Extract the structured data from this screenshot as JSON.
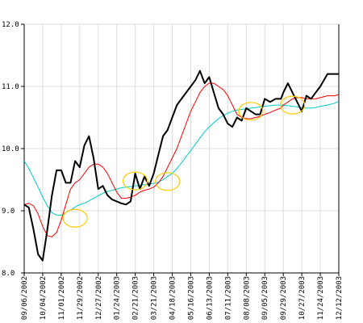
{
  "chart_data": {
    "type": "line",
    "title": "",
    "xlabel": "",
    "ylabel": "",
    "ylim": [
      8.0,
      12.0
    ],
    "yticks": [
      8.0,
      9.0,
      10.0,
      11.0,
      12.0
    ],
    "ytick_labels": [
      "8.0",
      "9.0",
      "10.0",
      "11.0",
      "12.0"
    ],
    "xticks": [
      "09/06/2002",
      "10/04/2002",
      "11/01/2002",
      "11/29/2002",
      "12/27/2002",
      "01/24/2003",
      "02/21/2003",
      "03/21/2003",
      "04/18/2003",
      "05/16/2003",
      "06/13/2003",
      "07/11/2003",
      "08/08/2003",
      "09/05/2003",
      "09/29/2003",
      "10/27/2003",
      "11/24/2003",
      "12/12/2003"
    ],
    "grid": true,
    "legend": "none",
    "colors": {
      "price": "#000000",
      "short_ma": "#ff0000",
      "long_ma": "#00cccc",
      "crossover_marker": "#ffcc00",
      "grid": "#dddddd",
      "axis": "#000000"
    },
    "series": [
      {
        "key": "price",
        "x": [
          "09/06/2002",
          "09/13/2002",
          "09/20/2002",
          "09/27/2002",
          "10/04/2002",
          "10/11/2002",
          "10/18/2002",
          "10/25/2002",
          "11/01/2002",
          "11/08/2002",
          "11/15/2002",
          "11/22/2002",
          "11/29/2002",
          "12/06/2002",
          "12/13/2002",
          "12/20/2002",
          "12/27/2002",
          "01/03/2003",
          "01/10/2003",
          "01/17/2003",
          "01/24/2003",
          "01/31/2003",
          "02/07/2003",
          "02/14/2003",
          "02/21/2003",
          "02/28/2003",
          "03/07/2003",
          "03/14/2003",
          "03/21/2003",
          "03/28/2003",
          "04/04/2003",
          "04/11/2003",
          "04/18/2003",
          "04/25/2003",
          "05/02/2003",
          "05/09/2003",
          "05/16/2003",
          "05/23/2003",
          "05/30/2003",
          "06/06/2003",
          "06/13/2003",
          "06/20/2003",
          "06/27/2003",
          "07/04/2003",
          "07/11/2003",
          "07/18/2003",
          "07/25/2003",
          "08/01/2003",
          "08/08/2003",
          "08/15/2003",
          "08/22/2003",
          "08/29/2003",
          "09/05/2003",
          "09/12/2003",
          "09/19/2003",
          "09/26/2003",
          "09/29/2003",
          "10/06/2003",
          "10/13/2003",
          "10/20/2003",
          "10/27/2003",
          "11/03/2003",
          "11/10/2003",
          "11/17/2003",
          "11/24/2003",
          "12/01/2003",
          "12/08/2003",
          "12/12/2003"
        ],
        "values": [
          9.1,
          9.05,
          8.7,
          8.3,
          8.2,
          8.7,
          9.25,
          9.65,
          9.65,
          9.45,
          9.45,
          9.8,
          9.7,
          10.05,
          10.2,
          9.85,
          9.35,
          9.4,
          9.25,
          9.18,
          9.15,
          9.12,
          9.1,
          9.15,
          9.6,
          9.35,
          9.55,
          9.4,
          9.6,
          9.9,
          10.2,
          10.3,
          10.5,
          10.7,
          10.8,
          10.9,
          11.0,
          11.1,
          11.25,
          11.05,
          11.15,
          10.9,
          10.65,
          10.55,
          10.4,
          10.35,
          10.5,
          10.45,
          10.65,
          10.6,
          10.55,
          10.55,
          10.8,
          10.75,
          10.8,
          10.8,
          10.9,
          11.05,
          10.9,
          10.75,
          10.6,
          10.85,
          10.8,
          10.9,
          11.0,
          11.2,
          11.2,
          11.2
        ]
      },
      {
        "key": "short_ma",
        "x": [
          "09/06/2002",
          "09/13/2002",
          "09/20/2002",
          "09/27/2002",
          "10/04/2002",
          "10/11/2002",
          "10/18/2002",
          "10/25/2002",
          "11/01/2002",
          "11/08/2002",
          "11/15/2002",
          "11/22/2002",
          "11/29/2002",
          "12/06/2002",
          "12/13/2002",
          "12/20/2002",
          "12/27/2002",
          "01/03/2003",
          "01/10/2003",
          "01/17/2003",
          "01/24/2003",
          "01/31/2003",
          "02/07/2003",
          "02/14/2003",
          "02/21/2003",
          "02/28/2003",
          "03/07/2003",
          "03/14/2003",
          "03/21/2003",
          "03/28/2003",
          "04/04/2003",
          "04/11/2003",
          "04/18/2003",
          "04/25/2003",
          "05/02/2003",
          "05/09/2003",
          "05/16/2003",
          "05/23/2003",
          "05/30/2003",
          "06/06/2003",
          "06/13/2003",
          "06/20/2003",
          "06/27/2003",
          "07/04/2003",
          "07/11/2003",
          "07/18/2003",
          "07/25/2003",
          "08/01/2003",
          "08/08/2003",
          "08/15/2003",
          "08/22/2003",
          "08/29/2003",
          "09/05/2003",
          "09/12/2003",
          "09/19/2003",
          "09/26/2003",
          "09/29/2003",
          "10/06/2003",
          "10/13/2003",
          "10/20/2003",
          "10/27/2003",
          "11/03/2003",
          "11/10/2003",
          "11/17/2003",
          "11/24/2003",
          "12/01/2003",
          "12/08/2003",
          "12/12/2003"
        ],
        "values": [
          9.1,
          9.12,
          9.08,
          8.95,
          8.75,
          8.6,
          8.58,
          8.65,
          8.85,
          9.1,
          9.35,
          9.45,
          9.5,
          9.6,
          9.7,
          9.75,
          9.75,
          9.7,
          9.6,
          9.45,
          9.3,
          9.2,
          9.2,
          9.22,
          9.25,
          9.3,
          9.33,
          9.35,
          9.38,
          9.45,
          9.55,
          9.7,
          9.85,
          10.0,
          10.2,
          10.4,
          10.6,
          10.75,
          10.9,
          11.0,
          11.05,
          11.05,
          11.0,
          10.95,
          10.85,
          10.7,
          10.55,
          10.5,
          10.48,
          10.48,
          10.5,
          10.52,
          10.55,
          10.58,
          10.62,
          10.65,
          10.7,
          10.75,
          10.8,
          10.82,
          10.82,
          10.8,
          10.8,
          10.8,
          10.82,
          10.85,
          10.85,
          10.87
        ]
      },
      {
        "key": "long_ma",
        "x": [
          "09/06/2002",
          "09/13/2002",
          "09/20/2002",
          "09/27/2002",
          "10/04/2002",
          "10/11/2002",
          "10/18/2002",
          "10/25/2002",
          "11/01/2002",
          "11/08/2002",
          "11/15/2002",
          "11/22/2002",
          "11/29/2002",
          "12/06/2002",
          "12/13/2002",
          "12/20/2002",
          "12/27/2002",
          "01/03/2003",
          "01/10/2003",
          "01/17/2003",
          "01/24/2003",
          "01/31/2003",
          "02/07/2003",
          "02/14/2003",
          "02/21/2003",
          "02/28/2003",
          "03/07/2003",
          "03/14/2003",
          "03/21/2003",
          "03/28/2003",
          "04/04/2003",
          "04/11/2003",
          "04/18/2003",
          "04/25/2003",
          "05/02/2003",
          "05/09/2003",
          "05/16/2003",
          "05/23/2003",
          "05/30/2003",
          "06/06/2003",
          "06/13/2003",
          "06/20/2003",
          "06/27/2003",
          "07/04/2003",
          "07/11/2003",
          "07/18/2003",
          "07/25/2003",
          "08/01/2003",
          "08/08/2003",
          "08/15/2003",
          "08/22/2003",
          "08/29/2003",
          "09/05/2003",
          "09/12/2003",
          "09/19/2003",
          "09/26/2003",
          "09/29/2003",
          "10/06/2003",
          "10/13/2003",
          "10/20/2003",
          "10/27/2003",
          "11/03/2003",
          "11/10/2003",
          "11/17/2003",
          "11/24/2003",
          "12/01/2003",
          "12/08/2003",
          "12/12/2003"
        ],
        "values": [
          9.8,
          9.68,
          9.53,
          9.38,
          9.22,
          9.08,
          8.97,
          8.93,
          8.93,
          8.97,
          9.01,
          9.06,
          9.1,
          9.12,
          9.16,
          9.2,
          9.24,
          9.28,
          9.31,
          9.33,
          9.35,
          9.37,
          9.38,
          9.39,
          9.4,
          9.41,
          9.42,
          9.43,
          9.44,
          9.46,
          9.5,
          9.55,
          9.6,
          9.68,
          9.77,
          9.87,
          9.97,
          10.07,
          10.17,
          10.27,
          10.35,
          10.42,
          10.48,
          10.53,
          10.57,
          10.6,
          10.62,
          10.63,
          10.64,
          10.65,
          10.66,
          10.67,
          10.68,
          10.69,
          10.7,
          10.7,
          10.7,
          10.69,
          10.68,
          10.67,
          10.66,
          10.65,
          10.65,
          10.66,
          10.68,
          10.7,
          10.73,
          10.76
        ]
      }
    ],
    "crossover_markers": [
      {
        "x": "11/22/2002",
        "y": 8.88
      },
      {
        "x": "02/21/2003",
        "y": 9.48
      },
      {
        "x": "04/11/2003",
        "y": 9.47
      },
      {
        "x": "08/15/2003",
        "y": 10.6
      },
      {
        "x": "10/13/2003",
        "y": 10.7
      }
    ]
  }
}
